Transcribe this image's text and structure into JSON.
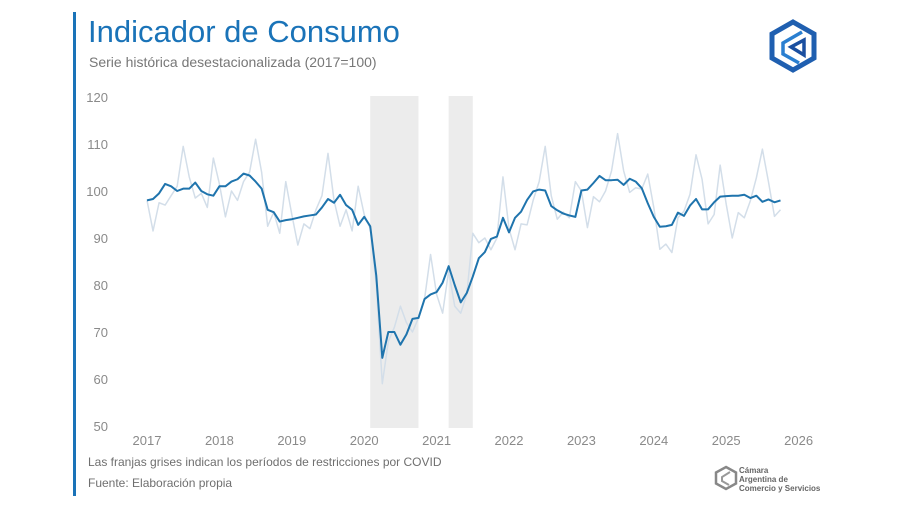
{
  "header": {
    "title": "Indicador de Consumo",
    "subtitle": "Serie histórica desestacionalizada (2017=100)"
  },
  "footer": {
    "note": "Las franjas grises indican los períodos de restricciones por COVID",
    "source": "Fuente: Elaboración propia",
    "org_logo_text": [
      "Cámara",
      "Argentina de",
      "Comercio y Servicios"
    ]
  },
  "colors": {
    "accent": "#1a73b8",
    "trend": "#1f74ad",
    "original": "#d3dee9",
    "covid_band": "#ececec"
  },
  "chart_data": {
    "type": "line",
    "title": "Indicador de Consumo",
    "subtitle": "Serie histórica desestacionalizada (2017=100)",
    "xlabel": "",
    "ylabel": "",
    "x_start": "2017-01",
    "x_frequency": "monthly",
    "xlim": [
      2017,
      2026
    ],
    "ylim": [
      50,
      120
    ],
    "x_ticks": [
      "2017",
      "2018",
      "2019",
      "2020",
      "2021",
      "2022",
      "2023",
      "2024",
      "2025",
      "2026"
    ],
    "y_ticks": [
      50,
      60,
      70,
      80,
      90,
      100,
      110,
      120
    ],
    "grid": false,
    "legend": "none",
    "shaded_periods": [
      {
        "from": "2020-02",
        "to": "2020-09"
      },
      {
        "from": "2021-03",
        "to": "2021-06"
      }
    ],
    "series": [
      {
        "style": "original-light",
        "values": [
          98,
          91.5,
          97.5,
          97,
          99,
          101,
          109.5,
          103,
          98.5,
          99.5,
          96.5,
          107,
          101.5,
          94.5,
          100,
          98,
          102,
          104,
          111,
          104,
          92.5,
          95.5,
          91,
          102,
          95,
          88.5,
          93,
          92,
          96,
          99,
          108,
          98,
          92.5,
          96,
          91.5,
          101,
          95,
          92,
          80,
          59,
          68,
          71,
          75.5,
          72,
          70,
          73,
          77,
          86.5,
          78,
          74,
          83,
          75.5,
          74,
          78,
          91,
          89,
          90,
          87.5,
          90,
          103,
          92,
          87.5,
          93,
          92.8,
          98,
          102,
          109.5,
          99,
          94,
          95.5,
          94.3,
          102,
          100,
          92.2,
          98.8,
          97.7,
          100,
          104.3,
          112.2,
          104.3,
          99.7,
          100.7,
          100.4,
          103.6,
          96.5,
          87.6,
          88.7,
          86.9,
          94.3,
          95.7,
          99.3,
          107.7,
          102.5,
          93,
          95,
          105.5,
          97.2,
          90,
          95.4,
          94.3,
          97.9,
          102.8,
          108.9,
          102,
          94.6,
          96
        ]
      },
      {
        "style": "trend-dark",
        "values": [
          98,
          98.3,
          99.5,
          101.5,
          101,
          100,
          100.5,
          100.5,
          101.8,
          100,
          99.3,
          99,
          101,
          101,
          102,
          102.5,
          103.7,
          103.3,
          102,
          100.5,
          96,
          95.5,
          93.5,
          93.8,
          94,
          94.3,
          94.6,
          94.8,
          95,
          96.5,
          98.3,
          97.5,
          99.2,
          97,
          96,
          92.8,
          94.5,
          92.5,
          82,
          64.5,
          70,
          70,
          67.3,
          69.5,
          72.8,
          73,
          77,
          78,
          78.5,
          80.5,
          84,
          80,
          76.3,
          78.3,
          81.8,
          85.7,
          87,
          89.8,
          90.3,
          94.3,
          91.2,
          94.3,
          95.6,
          98.1,
          99.9,
          100.3,
          100.1,
          96.8,
          95.9,
          95.2,
          94.8,
          94.5,
          100.1,
          100.3,
          101.7,
          103.2,
          102.3,
          102.3,
          102.4,
          101.3,
          102.6,
          102,
          100.6,
          97.4,
          94.5,
          92.4,
          92.5,
          92.8,
          95.4,
          94.7,
          96.9,
          98.3,
          96.1,
          96.1,
          97.6,
          98.8,
          98.9,
          99,
          99,
          99.2,
          98.5,
          99,
          97.7,
          98.2,
          97.6,
          98
        ]
      }
    ]
  }
}
